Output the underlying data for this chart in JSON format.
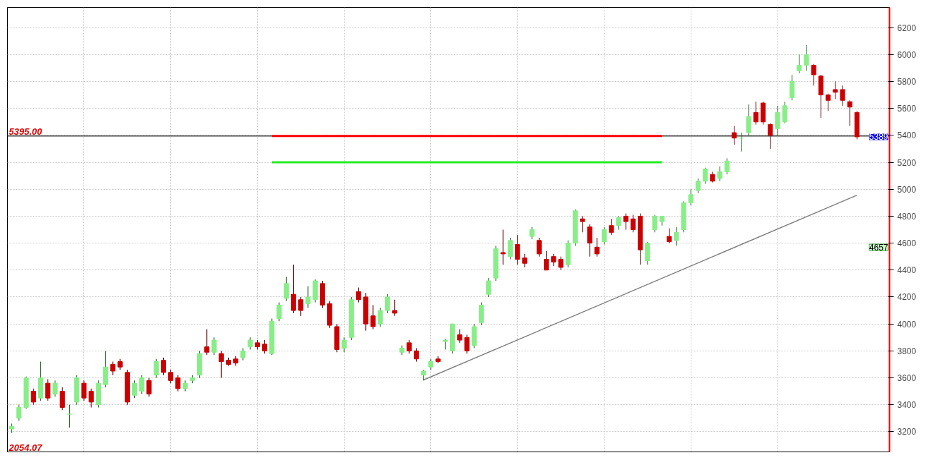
{
  "chart_data": {
    "type": "candlestick",
    "categories": [
      null,
      null,
      null,
      null,
      null,
      null,
      null,
      null,
      null,
      null,
      null,
      null,
      null,
      null,
      null,
      null,
      null,
      null,
      null,
      null,
      null,
      null,
      null,
      null,
      null,
      null,
      null,
      null,
      null,
      null,
      null,
      null,
      null,
      null,
      null,
      null,
      null,
      null,
      null,
      null,
      null,
      null,
      null,
      null,
      null,
      null,
      null,
      null,
      null,
      null,
      null,
      null,
      null,
      null,
      null,
      null,
      null,
      null,
      null,
      null,
      null,
      null,
      null,
      null,
      null,
      null,
      null,
      null,
      null,
      null,
      null,
      null,
      null,
      null,
      null,
      null,
      null,
      null,
      null,
      null,
      null,
      null,
      null,
      null,
      null,
      null,
      null,
      null,
      null,
      null,
      null,
      null,
      null,
      null,
      null,
      null,
      null,
      null,
      null,
      null,
      null,
      null,
      null,
      null,
      null,
      null,
      null,
      null,
      null,
      null,
      null,
      null,
      null,
      null,
      null,
      null,
      null,
      null
    ],
    "ohlc": [
      [
        3220,
        3260,
        3190,
        3240
      ],
      [
        3300,
        3400,
        3280,
        3380
      ],
      [
        3380,
        3610,
        3370,
        3600
      ],
      [
        3500,
        3520,
        3400,
        3420
      ],
      [
        3450,
        3720,
        3430,
        3600
      ],
      [
        3560,
        3590,
        3430,
        3450
      ],
      [
        3480,
        3580,
        3460,
        3560
      ],
      [
        3500,
        3530,
        3360,
        3380
      ],
      [
        3330,
        3400,
        3230,
        3330
      ],
      [
        3420,
        3620,
        3400,
        3600
      ],
      [
        3560,
        3580,
        3430,
        3450
      ],
      [
        3500,
        3520,
        3380,
        3420
      ],
      [
        3400,
        3580,
        3380,
        3560
      ],
      [
        3550,
        3800,
        3530,
        3680
      ],
      [
        3700,
        3720,
        3620,
        3650
      ],
      [
        3720,
        3740,
        3660,
        3680
      ],
      [
        3640,
        3660,
        3400,
        3420
      ],
      [
        3470,
        3580,
        3450,
        3560
      ],
      [
        3500,
        3620,
        3480,
        3600
      ],
      [
        3580,
        3600,
        3460,
        3480
      ],
      [
        3620,
        3740,
        3600,
        3720
      ],
      [
        3730,
        3750,
        3620,
        3640
      ],
      [
        3640,
        3660,
        3560,
        3580
      ],
      [
        3600,
        3620,
        3500,
        3520
      ],
      [
        3520,
        3580,
        3500,
        3560
      ],
      [
        3580,
        3620,
        3560,
        3600
      ],
      [
        3620,
        3800,
        3600,
        3780
      ],
      [
        3830,
        3960,
        3770,
        3790
      ],
      [
        3790,
        3900,
        3770,
        3880
      ],
      [
        3780,
        3800,
        3600,
        3720
      ],
      [
        3730,
        3750,
        3690,
        3700
      ],
      [
        3740,
        3760,
        3690,
        3710
      ],
      [
        3750,
        3820,
        3730,
        3800
      ],
      [
        3830,
        3900,
        3810,
        3880
      ],
      [
        3860,
        3880,
        3810,
        3830
      ],
      [
        3850,
        3880,
        3780,
        3800
      ],
      [
        3780,
        4040,
        3770,
        4020
      ],
      [
        4040,
        4160,
        4020,
        4140
      ],
      [
        4190,
        4350,
        4170,
        4300
      ],
      [
        4220,
        4440,
        4080,
        4100
      ],
      [
        4180,
        4200,
        4060,
        4100
      ],
      [
        4150,
        4280,
        4120,
        4200
      ],
      [
        4180,
        4330,
        4160,
        4320
      ],
      [
        4300,
        4320,
        4120,
        4140
      ],
      [
        4150,
        4170,
        3970,
        3990
      ],
      [
        3980,
        4000,
        3790,
        3810
      ],
      [
        3820,
        3900,
        3790,
        3880
      ],
      [
        3900,
        4200,
        3880,
        4180
      ],
      [
        4240,
        4270,
        4160,
        4180
      ],
      [
        4200,
        4230,
        3950,
        4000
      ],
      [
        4060,
        4140,
        3960,
        3980
      ],
      [
        4000,
        4120,
        3980,
        4100
      ],
      [
        4100,
        4220,
        4080,
        4200
      ],
      [
        4100,
        4180,
        4060,
        4080
      ],
      [
        3790,
        3840,
        3770,
        3820
      ],
      [
        3860,
        3880,
        3780,
        3800
      ],
      [
        3800,
        3820,
        3720,
        3740
      ],
      [
        3620,
        3660,
        3580,
        3650
      ],
      [
        3680,
        3740,
        3660,
        3720
      ],
      [
        3740,
        3760,
        3710,
        3720
      ],
      [
        3870,
        3890,
        3810,
        3880
      ],
      [
        3800,
        4000,
        3780,
        4000
      ],
      [
        3920,
        3960,
        3860,
        3880
      ],
      [
        3900,
        3920,
        3780,
        3800
      ],
      [
        3840,
        4000,
        3820,
        3980
      ],
      [
        4010,
        4160,
        3990,
        4140
      ],
      [
        4220,
        4340,
        4200,
        4320
      ],
      [
        4340,
        4580,
        4320,
        4560
      ],
      [
        4530,
        4700,
        4440,
        4520
      ],
      [
        4500,
        4640,
        4480,
        4620
      ],
      [
        4590,
        4660,
        4440,
        4480
      ],
      [
        4490,
        4520,
        4420,
        4450
      ],
      [
        4650,
        4720,
        4630,
        4700
      ],
      [
        4620,
        4640,
        4500,
        4520
      ],
      [
        4480,
        4540,
        4400,
        4400
      ],
      [
        4500,
        4520,
        4430,
        4460
      ],
      [
        4480,
        4500,
        4400,
        4420
      ],
      [
        4440,
        4620,
        4420,
        4600
      ],
      [
        4600,
        4850,
        4580,
        4840
      ],
      [
        4780,
        4800,
        4680,
        4760
      ],
      [
        4720,
        4740,
        4500,
        4600
      ],
      [
        4570,
        4640,
        4500,
        4520
      ],
      [
        4610,
        4720,
        4590,
        4700
      ],
      [
        4730,
        4780,
        4660,
        4680
      ],
      [
        4730,
        4800,
        4700,
        4790
      ],
      [
        4800,
        4820,
        4700,
        4760
      ],
      [
        4780,
        4810,
        4680,
        4700
      ],
      [
        4800,
        4820,
        4440,
        4550
      ],
      [
        4470,
        4610,
        4440,
        4600
      ],
      [
        4700,
        4810,
        4680,
        4800
      ],
      [
        4760,
        4800,
        4730,
        4800
      ],
      [
        4650,
        4710,
        4600,
        4610
      ],
      [
        4620,
        4720,
        4580,
        4680
      ],
      [
        4700,
        4910,
        4680,
        4900
      ],
      [
        4900,
        5000,
        4880,
        4960
      ],
      [
        4990,
        5080,
        4970,
        5060
      ],
      [
        5060,
        5160,
        5040,
        5150
      ],
      [
        5110,
        5130,
        5050,
        5060
      ],
      [
        5080,
        5170,
        5060,
        5130
      ],
      [
        5130,
        5230,
        5110,
        5210
      ],
      [
        5420,
        5470,
        5330,
        5380
      ],
      [
        5380,
        5420,
        5280,
        5380
      ],
      [
        5420,
        5630,
        5400,
        5540
      ],
      [
        5570,
        5650,
        5480,
        5500
      ],
      [
        5640,
        5650,
        5480,
        5500
      ],
      [
        5480,
        5490,
        5300,
        5400
      ],
      [
        5450,
        5620,
        5400,
        5570
      ],
      [
        5500,
        5650,
        5490,
        5620
      ],
      [
        5680,
        5850,
        5660,
        5800
      ],
      [
        5880,
        6000,
        5860,
        5920
      ],
      [
        5920,
        6070,
        5880,
        6000
      ],
      [
        5920,
        5930,
        5770,
        5850
      ],
      [
        5840,
        5850,
        5530,
        5700
      ],
      [
        5700,
        5710,
        5580,
        5660
      ],
      [
        5740,
        5800,
        5670,
        5720
      ],
      [
        5740,
        5770,
        5620,
        5660
      ],
      [
        5650,
        5660,
        5470,
        5610
      ],
      [
        5570,
        5580,
        5370,
        5389
      ]
    ],
    "series": [
      {
        "type": "line",
        "color": "#ff0000",
        "values": [
          null,
          null,
          null,
          null,
          null,
          null,
          null,
          null,
          null,
          null,
          null,
          null,
          null,
          null,
          null,
          null,
          null,
          null,
          null,
          null,
          null,
          null,
          null,
          null,
          null,
          null,
          null,
          null,
          null,
          null,
          null,
          null,
          null,
          null,
          null,
          null,
          5395,
          null,
          null,
          null,
          null,
          null,
          null,
          null,
          null,
          null,
          null,
          null,
          null,
          null,
          null,
          null,
          null,
          null,
          null,
          null,
          null,
          null,
          null,
          null,
          null,
          null,
          null,
          null,
          null,
          null,
          null,
          null,
          null,
          null,
          null,
          null,
          null,
          null,
          null,
          null,
          null,
          null,
          null,
          null,
          null,
          null,
          null,
          null,
          null,
          null,
          null,
          null,
          null,
          null,
          5395,
          null,
          null,
          null,
          null,
          null,
          null,
          null,
          null,
          null,
          null,
          null,
          null,
          null,
          null,
          null,
          null,
          null,
          null,
          null,
          null,
          null,
          null,
          null,
          null,
          null,
          null,
          null
        ]
      },
      {
        "type": "line",
        "color": "#22ee22",
        "values": [
          null,
          null,
          null,
          null,
          null,
          null,
          null,
          null,
          null,
          null,
          null,
          null,
          null,
          null,
          null,
          null,
          null,
          null,
          null,
          null,
          null,
          null,
          null,
          null,
          null,
          null,
          null,
          null,
          null,
          null,
          null,
          null,
          null,
          null,
          null,
          null,
          5200,
          null,
          null,
          null,
          null,
          null,
          null,
          null,
          null,
          null,
          null,
          null,
          null,
          null,
          null,
          null,
          null,
          null,
          null,
          null,
          null,
          null,
          null,
          null,
          null,
          null,
          null,
          null,
          null,
          null,
          null,
          null,
          null,
          null,
          null,
          null,
          null,
          null,
          null,
          null,
          null,
          null,
          null,
          null,
          null,
          null,
          null,
          null,
          null,
          null,
          null,
          null,
          null,
          null,
          5200,
          null,
          null,
          null,
          null,
          null,
          null,
          null,
          null,
          null,
          null,
          null,
          null,
          null,
          null,
          null,
          null,
          null,
          null,
          null,
          null,
          null,
          null,
          null,
          null,
          null,
          null,
          null
        ]
      },
      {
        "type": "line",
        "color": "#808080",
        "values": [
          null,
          null,
          null,
          null,
          null,
          null,
          null,
          null,
          null,
          null,
          null,
          null,
          null,
          null,
          null,
          null,
          null,
          null,
          null,
          null,
          null,
          null,
          null,
          null,
          null,
          null,
          null,
          null,
          null,
          null,
          null,
          null,
          null,
          null,
          null,
          null,
          null,
          null,
          null,
          null,
          null,
          null,
          null,
          null,
          null,
          null,
          null,
          null,
          null,
          null,
          null,
          null,
          null,
          null,
          null,
          null,
          null,
          3584,
          null,
          null,
          null,
          null,
          null,
          null,
          null,
          null,
          null,
          null,
          null,
          null,
          null,
          null,
          null,
          null,
          null,
          null,
          null,
          null,
          null,
          null,
          null,
          null,
          null,
          null,
          null,
          null,
          null,
          null,
          null,
          null,
          null,
          null,
          null,
          null,
          null,
          null,
          null,
          null,
          null,
          null,
          null,
          null,
          null,
          null,
          null,
          null,
          null,
          null,
          null,
          null,
          null,
          null,
          null,
          null,
          null,
          null,
          null,
          4956
        ]
      }
    ],
    "ref_lines": [
      {
        "axis": "y",
        "value": 5395,
        "label": "5395.00",
        "color": "#404040"
      }
    ],
    "annotations": [
      "2054.07",
      {
        "text": "5389",
        "y": 5389
      },
      "4657"
    ],
    "ylim": [
      3050,
      6350
    ],
    "yticks": [
      3200,
      3400,
      3600,
      3800,
      4000,
      4200,
      4400,
      4600,
      4800,
      5000,
      5200,
      5400,
      5600,
      5800,
      6000,
      6200
    ],
    "tick_labels": "y",
    "grid": true
  }
}
